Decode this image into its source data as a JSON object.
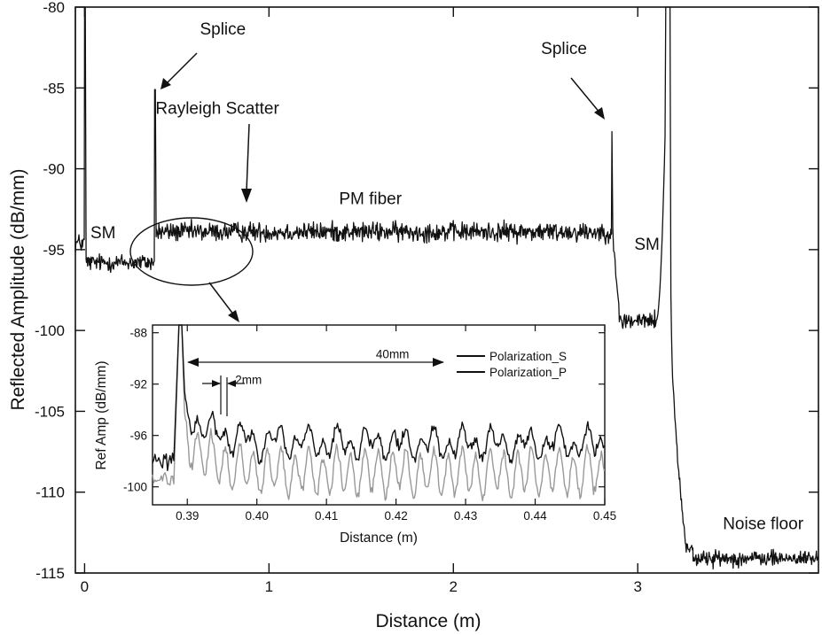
{
  "chart_data": [
    {
      "type": "line",
      "xlabel": "Distance (m)",
      "ylabel": "Reflected Amplitude (dB/mm)",
      "xlim": [
        -0.05,
        3.98
      ],
      "ylim": [
        -115,
        -80
      ],
      "x_ticks": [
        0,
        1,
        2,
        3
      ],
      "y_ticks": [
        -80,
        -85,
        -90,
        -95,
        -100,
        -105,
        -110,
        -115
      ],
      "grid": false,
      "series": [
        {
          "color": "#111111",
          "segments": [
            {
              "x_start": -0.05,
              "x_end": 0.0,
              "level": -94.6,
              "noise": 0.5
            },
            {
              "x_start": 0.0,
              "x_end": 0.38,
              "level": -95.8,
              "noise": 0.45
            },
            {
              "x_start": 0.39,
              "x_end": 2.86,
              "level": -93.9,
              "noise": 0.5
            },
            {
              "x_start": 2.87,
              "x_end": 3.12,
              "level": -99.4,
              "noise": 0.5
            },
            {
              "x_start": 3.3,
              "x_end": 3.98,
              "level": -114.1,
              "noise": 0.4
            }
          ],
          "spikes": [
            {
              "x": 0.0,
              "y": -80
            },
            {
              "x": 0.38,
              "y": -85.1
            },
            {
              "x": 2.86,
              "y": -87.7
            },
            {
              "x": 3.16,
              "y": -80
            }
          ]
        }
      ],
      "annotations": [
        {
          "text": "Splice",
          "x": 0.75,
          "y": -81.7
        },
        {
          "text": "Splice",
          "x": 2.6,
          "y": -82.9
        },
        {
          "text": "Rayleigh Scatter",
          "x": 0.72,
          "y": -86.6
        },
        {
          "text": "PM fiber",
          "x": 1.55,
          "y": -92.2
        },
        {
          "text": "SM",
          "x": 0.1,
          "y": -94.3
        },
        {
          "text": "SM",
          "x": 3.05,
          "y": -95.0
        },
        {
          "text": "Noise floor",
          "x": 3.68,
          "y": -112.3
        }
      ]
    },
    {
      "type": "line",
      "xlabel": "Distance (m)",
      "ylabel": "Ref Amp (dB/mm)",
      "xlim": [
        0.385,
        0.45
      ],
      "ylim": [
        -101.4,
        -87.4
      ],
      "x_ticks": [
        0.39,
        0.4,
        0.41,
        0.42,
        0.43,
        0.44,
        0.45
      ],
      "y_ticks": [
        -88,
        -92,
        -96,
        -100
      ],
      "legend_position": "top-right",
      "series": [
        {
          "name": "Polarization_S",
          "color": "#111111",
          "baseline": -96.6,
          "ripple": 1.4,
          "spike_x": 0.3888,
          "spike_y": -87.4
        },
        {
          "name": "Polarization_P",
          "color": "#999999",
          "baseline": -98.9,
          "ripple": 1.6,
          "spike_x": 0.3888,
          "spike_y": -87.4
        }
      ],
      "annotations": [
        {
          "text": "40mm",
          "x": 0.4195,
          "y": -90.0
        },
        {
          "text": "2mm",
          "x": 0.3988,
          "y": -92.0
        }
      ]
    }
  ]
}
